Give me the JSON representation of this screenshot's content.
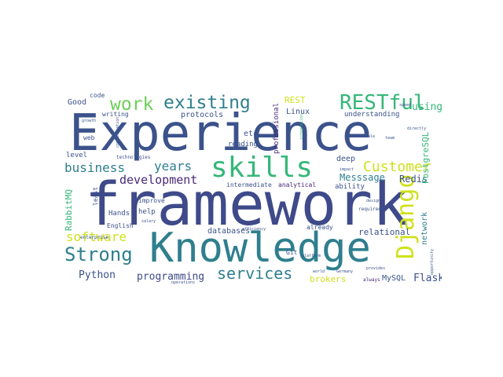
{
  "word_cloud": {
    "words": [
      "Experience",
      "framework",
      "Knowledge",
      "skills",
      "Django",
      "existing",
      "RESTful",
      "work",
      "Strong",
      "services",
      "Customer",
      "business",
      "years",
      "software",
      "development",
      "Python",
      "programming",
      "Messsage",
      "Redis",
      "Good",
      "REST",
      "using",
      "Flask",
      "brokers",
      "databases",
      "relational",
      "MySQL",
      "PostgreSQL",
      "RabbitMQ",
      "network",
      "Linux",
      "etc",
      "deep",
      "ability",
      "intermediate",
      "analytical",
      "professional",
      "understanding",
      "protocols",
      "reading",
      "help",
      "Hands",
      "English",
      "level",
      "web",
      "code",
      "writing",
      "improve",
      "least",
      "already",
      "Git",
      "always",
      "required",
      "communication",
      "enterprise",
      "opportunity",
      "technologies",
      "efficiency",
      "integration",
      "speed",
      "salary",
      "growth",
      "scale",
      "impact",
      "design",
      "team",
      "world",
      "Germany",
      "provides",
      "directly",
      "platform",
      "operations"
    ]
  },
  "colors": {
    "dark_blue": "#3b528b",
    "navy": "#3e4a89",
    "teal": "#2f7f8e",
    "green": "#35b779",
    "light_green": "#6ece58",
    "yellow": "#cfe11c",
    "purple": "#482878",
    "dark_purple": "#440154"
  }
}
